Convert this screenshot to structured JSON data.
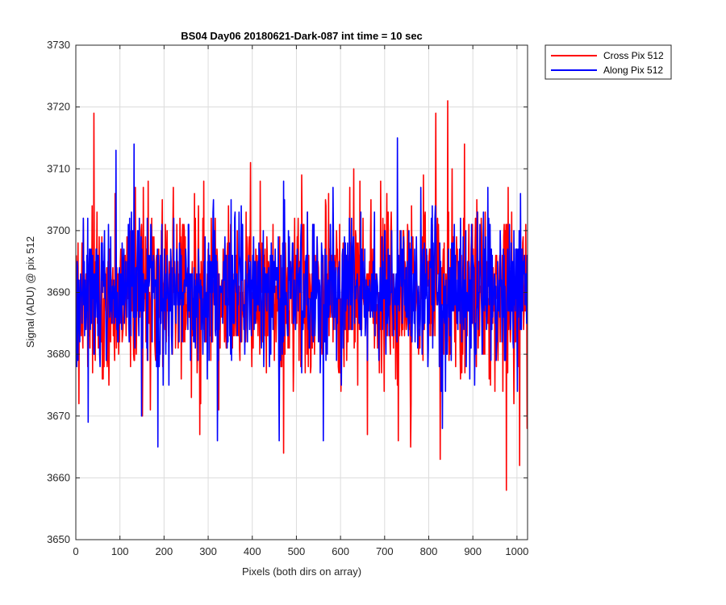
{
  "chart_data": {
    "type": "line",
    "title": "BS04 Day06 20180621-Dark-087 int time = 10 sec",
    "xlabel": "Pixels (both dirs on array)",
    "ylabel": "Signal (ADU) @ pix 512",
    "xlim": [
      0,
      1024
    ],
    "ylim": [
      3650,
      3730
    ],
    "xticks": [
      "0",
      "100",
      "200",
      "300",
      "400",
      "500",
      "600",
      "700",
      "800",
      "900",
      "1000"
    ],
    "yticks": [
      "3650",
      "3660",
      "3670",
      "3680",
      "3690",
      "3700",
      "3710",
      "3720",
      "3730"
    ],
    "grid": true,
    "legend_position": "outside-top-right",
    "series": [
      {
        "name": "Cross Pix 512",
        "color": "#ff0000",
        "noise": {
          "count": 1024,
          "mean": 3690,
          "std": 7,
          "seed": 11
        },
        "peaks": [
          [
            6,
            3672
          ],
          [
            40,
            3719
          ],
          [
            88,
            3706
          ],
          [
            150,
            3670
          ],
          [
            220,
            3707
          ],
          [
            280,
            3667
          ],
          [
            470,
            3664
          ],
          [
            660,
            3667
          ],
          [
            730,
            3666
          ],
          [
            758,
            3665
          ],
          [
            815,
            3719
          ],
          [
            825,
            3663
          ],
          [
            842,
            3721
          ],
          [
            880,
            3714
          ],
          [
            975,
            3658
          ],
          [
            1005,
            3662
          ],
          [
            1022,
            3668
          ]
        ]
      },
      {
        "name": "Along Pix 512",
        "color": "#0000ff",
        "noise": {
          "count": 1024,
          "mean": 3690,
          "std": 6,
          "seed": 29
        },
        "peaks": [
          [
            27,
            3669
          ],
          [
            90,
            3713
          ],
          [
            131,
            3714
          ],
          [
            185,
            3665
          ],
          [
            320,
            3666
          ],
          [
            460,
            3666
          ],
          [
            470,
            3708
          ],
          [
            560,
            3666
          ],
          [
            728,
            3715
          ],
          [
            830,
            3668
          ],
          [
            1000,
            3674
          ]
        ]
      }
    ]
  }
}
